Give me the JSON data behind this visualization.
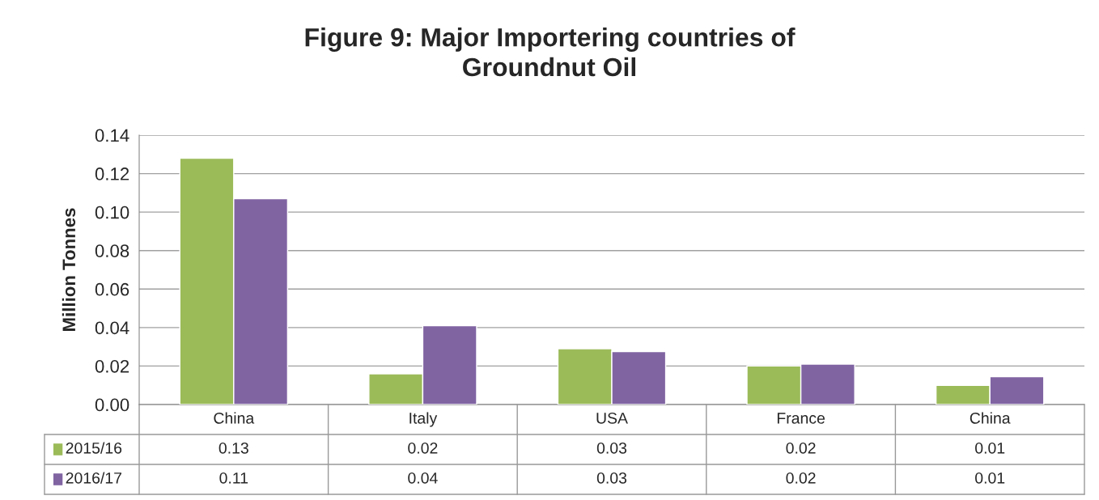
{
  "chart_data": {
    "type": "bar",
    "title": "Figure 9: Major Importering countries of\nGroundnut Oil",
    "ylabel": "Million Tonnes",
    "categories": [
      "China",
      "Italy",
      "USA",
      "France",
      "China"
    ],
    "series": [
      {
        "name": "2015/16",
        "color": "#9bbb59",
        "values": [
          0.128,
          0.016,
          0.029,
          0.02,
          0.01
        ],
        "value_labels": [
          "0.13",
          "0.02",
          "0.03",
          "0.02",
          "0.01"
        ]
      },
      {
        "name": "2016/17",
        "color": "#8064a2",
        "values": [
          0.107,
          0.041,
          0.0275,
          0.021,
          0.0145
        ],
        "value_labels": [
          "0.11",
          "0.04",
          "0.03",
          "0.02",
          "0.01"
        ]
      }
    ],
    "ylim": [
      0,
      0.14
    ],
    "yticks": [
      {
        "value": 0,
        "label": "0.00"
      },
      {
        "value": 0.02,
        "label": "0.02"
      },
      {
        "value": 0.04,
        "label": "0.04"
      },
      {
        "value": 0.06,
        "label": "0.06"
      },
      {
        "value": 0.08,
        "label": "0.08"
      },
      {
        "value": 0.1,
        "label": "0.10"
      },
      {
        "value": 0.12,
        "label": "0.12"
      },
      {
        "value": 0.14,
        "label": "0.14"
      }
    ],
    "grid": "y",
    "legend": "bottom"
  }
}
